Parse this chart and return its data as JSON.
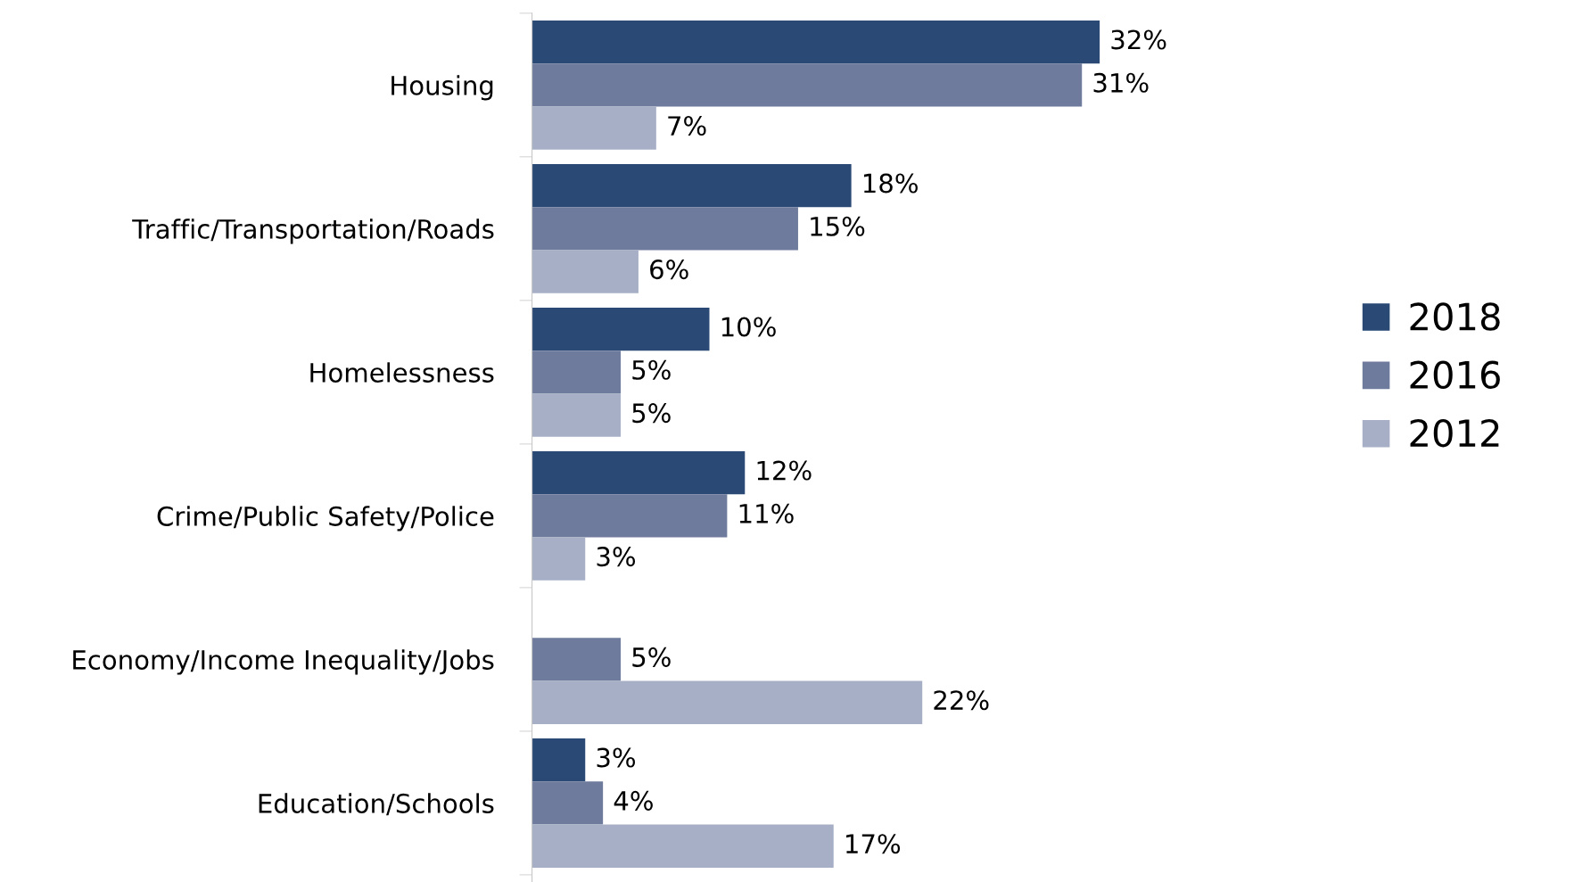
{
  "chart_data": {
    "type": "bar",
    "orientation": "horizontal",
    "categories": [
      "Housing",
      "Traffic/Transportation/Roads",
      "Homelessness",
      "Crime/Public Safety/Police",
      "Economy/Income Inequality/Jobs",
      "Education/Schools"
    ],
    "series": [
      {
        "name": "2018",
        "color": "#2a4a75",
        "values": [
          32,
          18,
          10,
          12,
          null,
          3
        ],
        "value_labels": [
          "32%",
          "18%",
          "10%",
          "12%",
          null,
          "3%"
        ]
      },
      {
        "name": "2016",
        "color": "#6e7b9d",
        "values": [
          31,
          15,
          5,
          11,
          5,
          4
        ],
        "value_labels": [
          "31%",
          "15%",
          "5%",
          "11%",
          "5%",
          "4%"
        ]
      },
      {
        "name": "2012",
        "color": "#a6afc6",
        "values": [
          7,
          6,
          5,
          3,
          22,
          17
        ],
        "value_labels": [
          "7%",
          "6%",
          "5%",
          "3%",
          "22%",
          "17%"
        ]
      }
    ],
    "legend": "right",
    "grid": false,
    "tick_labels": "y"
  }
}
